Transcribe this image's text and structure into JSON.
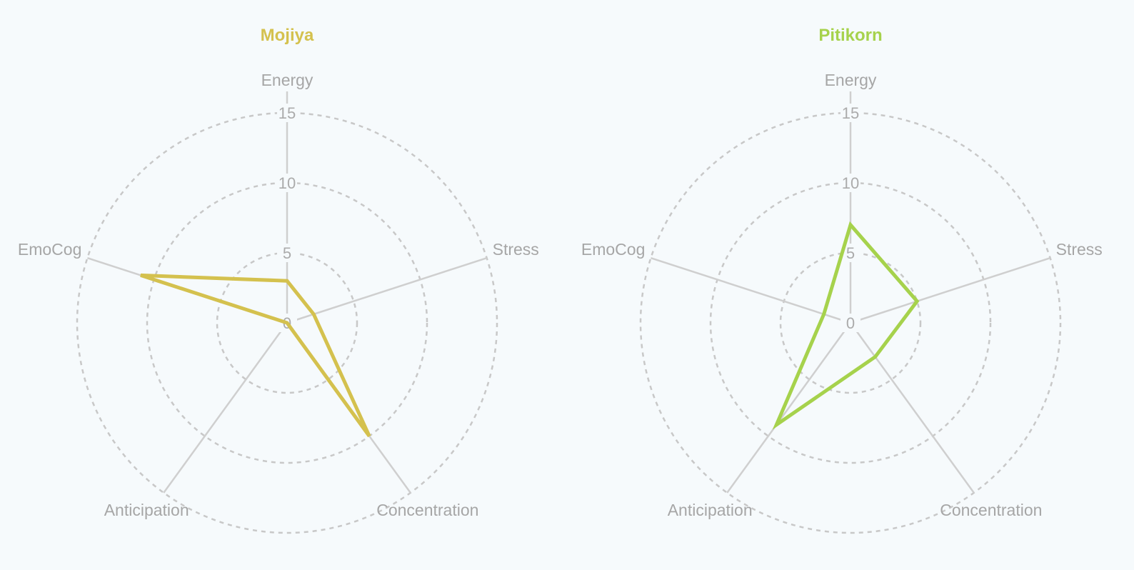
{
  "chart_data": [
    {
      "type": "radar",
      "title": "Mojiya",
      "color": "#d4c14e",
      "axes": [
        "Energy",
        "Stress",
        "Concentration",
        "Anticipation",
        "EmoCog"
      ],
      "ticks": [
        "0",
        "5",
        "10",
        "15"
      ],
      "rlim": [
        0,
        15
      ],
      "series": [
        {
          "values": [
            3,
            2,
            10,
            0,
            11
          ]
        }
      ]
    },
    {
      "type": "radar",
      "title": "Pitikorn",
      "color": "#a6d24c",
      "axes": [
        "Energy",
        "Stress",
        "Concentration",
        "Anticipation",
        "EmoCog"
      ],
      "ticks": [
        "0",
        "5",
        "10",
        "15"
      ],
      "rlim": [
        0,
        15
      ],
      "series": [
        {
          "values": [
            7,
            5,
            3,
            9,
            2
          ]
        }
      ]
    }
  ]
}
